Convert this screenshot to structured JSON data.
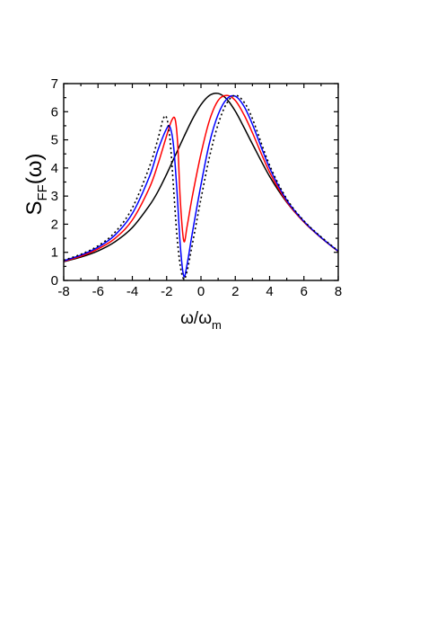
{
  "chart_data": {
    "type": "line",
    "title": "",
    "xlabel": {
      "base": "ω/ω",
      "sub": "m"
    },
    "ylabel": {
      "base": "S",
      "sub": "FF",
      "arg": "(ω)"
    },
    "xlim": [
      -8,
      8
    ],
    "ylim": [
      0,
      7
    ],
    "xticks": [
      "-8",
      "-6",
      "-4",
      "-2",
      "0",
      "2",
      "4",
      "6",
      "8"
    ],
    "yticks": [
      "0",
      "1",
      "2",
      "3",
      "4",
      "5",
      "6",
      "7"
    ],
    "grid": false,
    "legend": "none",
    "series": [
      {
        "color": "#000000",
        "dash": "solid",
        "x": [
          -8,
          -7,
          -6,
          -5,
          -4,
          -3,
          -2.5,
          -2,
          -1.5,
          -1,
          -0.5,
          0,
          0.5,
          1,
          1.5,
          2,
          2.5,
          3,
          4,
          5,
          6,
          7,
          8
        ],
        "y": [
          0.67,
          0.83,
          1.05,
          1.38,
          1.88,
          2.67,
          3.17,
          3.78,
          4.44,
          5.1,
          5.73,
          6.25,
          6.58,
          6.65,
          6.45,
          6.02,
          5.45,
          4.85,
          3.7,
          2.78,
          2.08,
          1.52,
          1.03
        ]
      },
      {
        "color": "#ff0000",
        "dash": "solid",
        "x": [
          -8,
          -7,
          -6,
          -5,
          -4,
          -3,
          -2.5,
          -2,
          -1.7,
          -1.5,
          -1.35,
          -1.2,
          -1.0,
          -0.8,
          -0.5,
          0,
          0.5,
          1,
          1.5,
          2,
          2.5,
          3,
          4,
          5,
          6,
          7,
          8
        ],
        "y": [
          0.68,
          0.86,
          1.12,
          1.5,
          2.15,
          3.3,
          4.15,
          5.15,
          5.7,
          5.72,
          4.8,
          2.8,
          1.4,
          1.95,
          3.0,
          4.5,
          5.7,
          6.4,
          6.58,
          6.4,
          5.9,
          5.25,
          3.85,
          2.8,
          2.08,
          1.52,
          1.03
        ]
      },
      {
        "color": "#0000ff",
        "dash": "solid",
        "x": [
          -8,
          -7,
          -6,
          -5,
          -4,
          -3,
          -2.5,
          -2,
          -1.8,
          -1.6,
          -1.4,
          -1.2,
          -1.0,
          -0.8,
          -0.5,
          0,
          0.5,
          1,
          1.5,
          2,
          2.5,
          3,
          4,
          5,
          6,
          7,
          8
        ],
        "y": [
          0.7,
          0.9,
          1.18,
          1.62,
          2.38,
          3.7,
          4.65,
          5.4,
          5.45,
          4.8,
          3.2,
          1.2,
          0.15,
          0.6,
          1.7,
          3.4,
          4.9,
          5.9,
          6.45,
          6.55,
          6.2,
          5.55,
          4.0,
          2.85,
          2.1,
          1.53,
          1.04
        ]
      },
      {
        "color": "#000000",
        "dash": "dotted",
        "x": [
          -8,
          -7,
          -6,
          -5,
          -4,
          -3,
          -2.5,
          -2.2,
          -2.0,
          -1.8,
          -1.6,
          -1.4,
          -1.2,
          -1.0,
          -0.8,
          -0.5,
          0,
          0.5,
          1,
          1.5,
          2,
          2.5,
          3,
          4,
          5,
          6,
          7,
          8
        ],
        "y": [
          0.72,
          0.93,
          1.23,
          1.72,
          2.58,
          4.05,
          5.05,
          5.75,
          5.78,
          5.0,
          3.3,
          1.6,
          0.5,
          0.05,
          0.35,
          1.3,
          2.9,
          4.4,
          5.55,
          6.3,
          6.58,
          6.35,
          5.75,
          4.1,
          2.9,
          2.12,
          1.55,
          1.05
        ]
      }
    ]
  }
}
